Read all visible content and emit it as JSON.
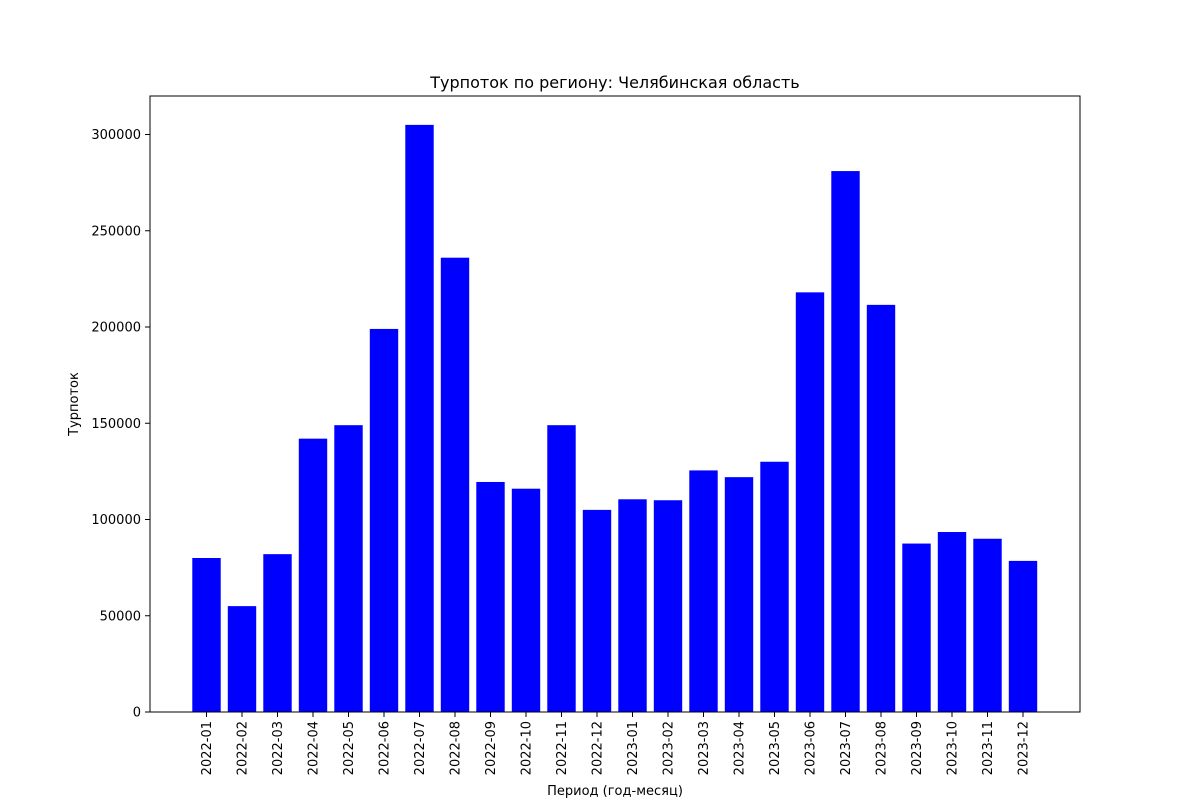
{
  "chart_data": {
    "type": "bar",
    "title": "Турпоток по региону: Челябинская область",
    "xlabel": "Период (год-месяц)",
    "ylabel": "Турпоток",
    "categories": [
      "2022-01",
      "2022-02",
      "2022-03",
      "2022-04",
      "2022-05",
      "2022-06",
      "2022-07",
      "2022-08",
      "2022-09",
      "2022-10",
      "2022-11",
      "2022-12",
      "2023-01",
      "2023-02",
      "2023-03",
      "2023-04",
      "2023-05",
      "2023-06",
      "2023-07",
      "2023-08",
      "2023-09",
      "2023-10",
      "2023-11",
      "2023-12"
    ],
    "values": [
      80000,
      55000,
      82000,
      142000,
      149000,
      199000,
      305000,
      236000,
      119500,
      116000,
      149000,
      105000,
      110500,
      110000,
      125500,
      122000,
      130000,
      218000,
      281000,
      211500,
      87500,
      93500,
      90000,
      78500
    ],
    "yticks": [
      0,
      50000,
      100000,
      150000,
      200000,
      250000,
      300000
    ],
    "ylim": [
      0,
      320000
    ],
    "bar_color": "#0000ff",
    "grid": false,
    "legend": "none"
  }
}
